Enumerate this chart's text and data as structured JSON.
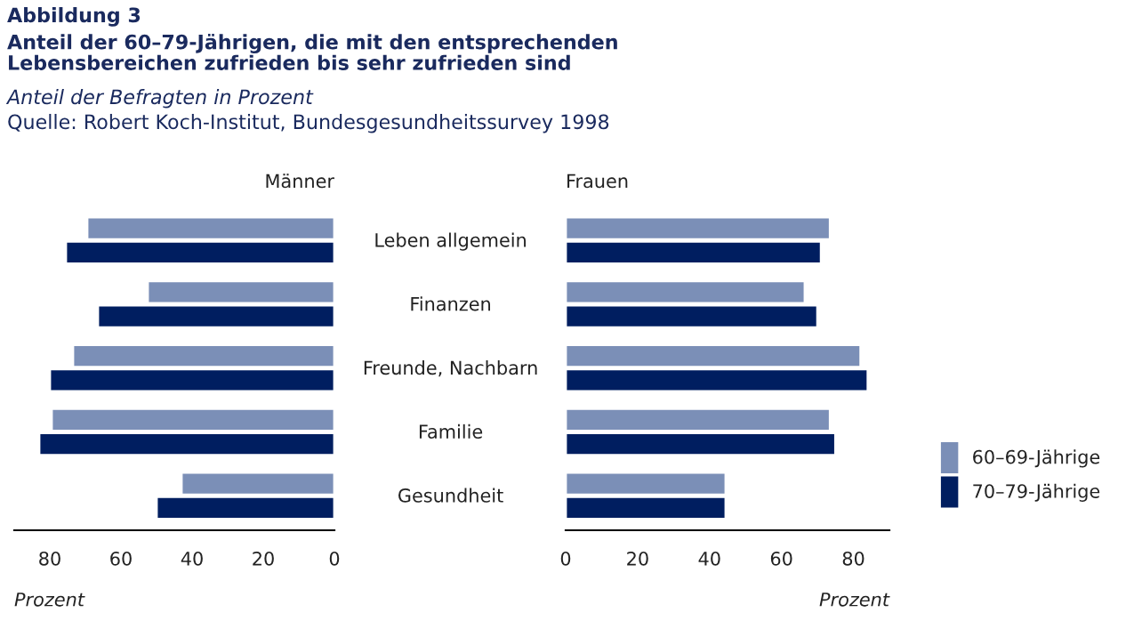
{
  "chart_data": [
    {
      "type": "bar",
      "orientation": "horizontal",
      "title": "Männer",
      "xlabel": "Prozent",
      "annotations": [
        "Abbildung 3",
        "Anteil der 60–79-Jährigen, die mit den entsprechenden\nLebensbereichen zufrieden bis sehr zufrieden sind",
        "Anteil der Befragten in Prozent",
        "Quelle: Robert Koch-Institut, Bundesgesundheitssurvey 1998"
      ],
      "categories": [
        "Leben allgemein",
        "Finanzen",
        "Freunde, Nachbarn",
        "Familie",
        "Gesundheit"
      ],
      "series": [
        {
          "color": "#7b8fb7",
          "values": [
            69.5,
            52.5,
            73.5,
            79.5,
            43
          ]
        },
        {
          "color": "#001e60",
          "values": [
            75.5,
            66.5,
            80,
            83,
            50
          ]
        }
      ],
      "xlim": [
        90,
        0
      ],
      "xticks": [
        80,
        60,
        40,
        20,
        0
      ],
      "grid": false,
      "legend": false
    },
    {
      "type": "bar",
      "orientation": "horizontal",
      "title": "Frauen",
      "xlabel": "Prozent",
      "categories": [
        null,
        null,
        null,
        null,
        null
      ],
      "series": [
        {
          "name": "60–69-Jährige",
          "color": "#7b8fb7",
          "values": [
            73.5,
            66.5,
            82,
            73.5,
            44.5
          ]
        },
        {
          "name": "70–79-Jährige",
          "color": "#001e60",
          "values": [
            71,
            70,
            84,
            75,
            44.5
          ]
        }
      ],
      "xlim": [
        0,
        90
      ],
      "xticks": [
        0,
        20,
        40,
        60,
        80
      ],
      "grid": false,
      "legend": "right"
    }
  ]
}
